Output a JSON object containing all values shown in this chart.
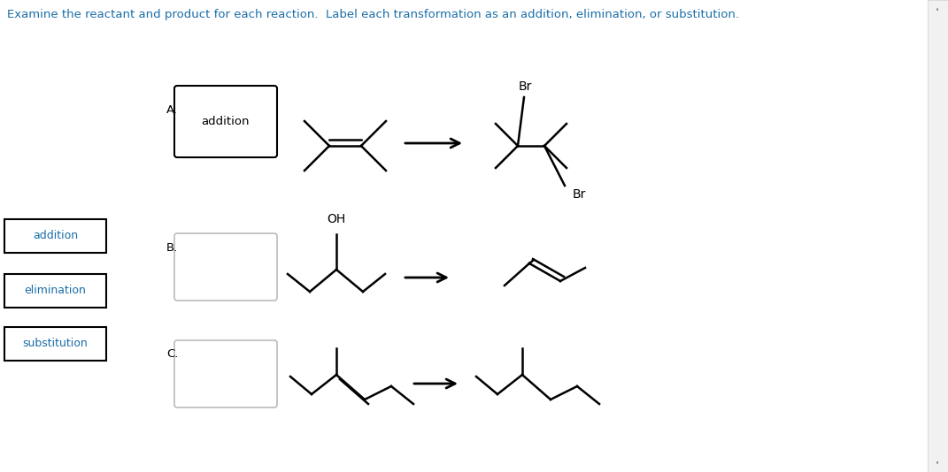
{
  "title": "Examine the reactant and product for each reaction.  Label each transformation as an addition, elimination, or substitution.",
  "title_color": "#1a6ea8",
  "background_color": "#ffffff",
  "label_A": "A.",
  "label_B": "B.",
  "label_C": "C.",
  "box_A_text": "addition",
  "left_labels": [
    "substitution",
    "elimination",
    "addition"
  ],
  "left_label_color": "#1a6ea8",
  "figsize": [
    10.71,
    5.34
  ],
  "dpi": 100
}
